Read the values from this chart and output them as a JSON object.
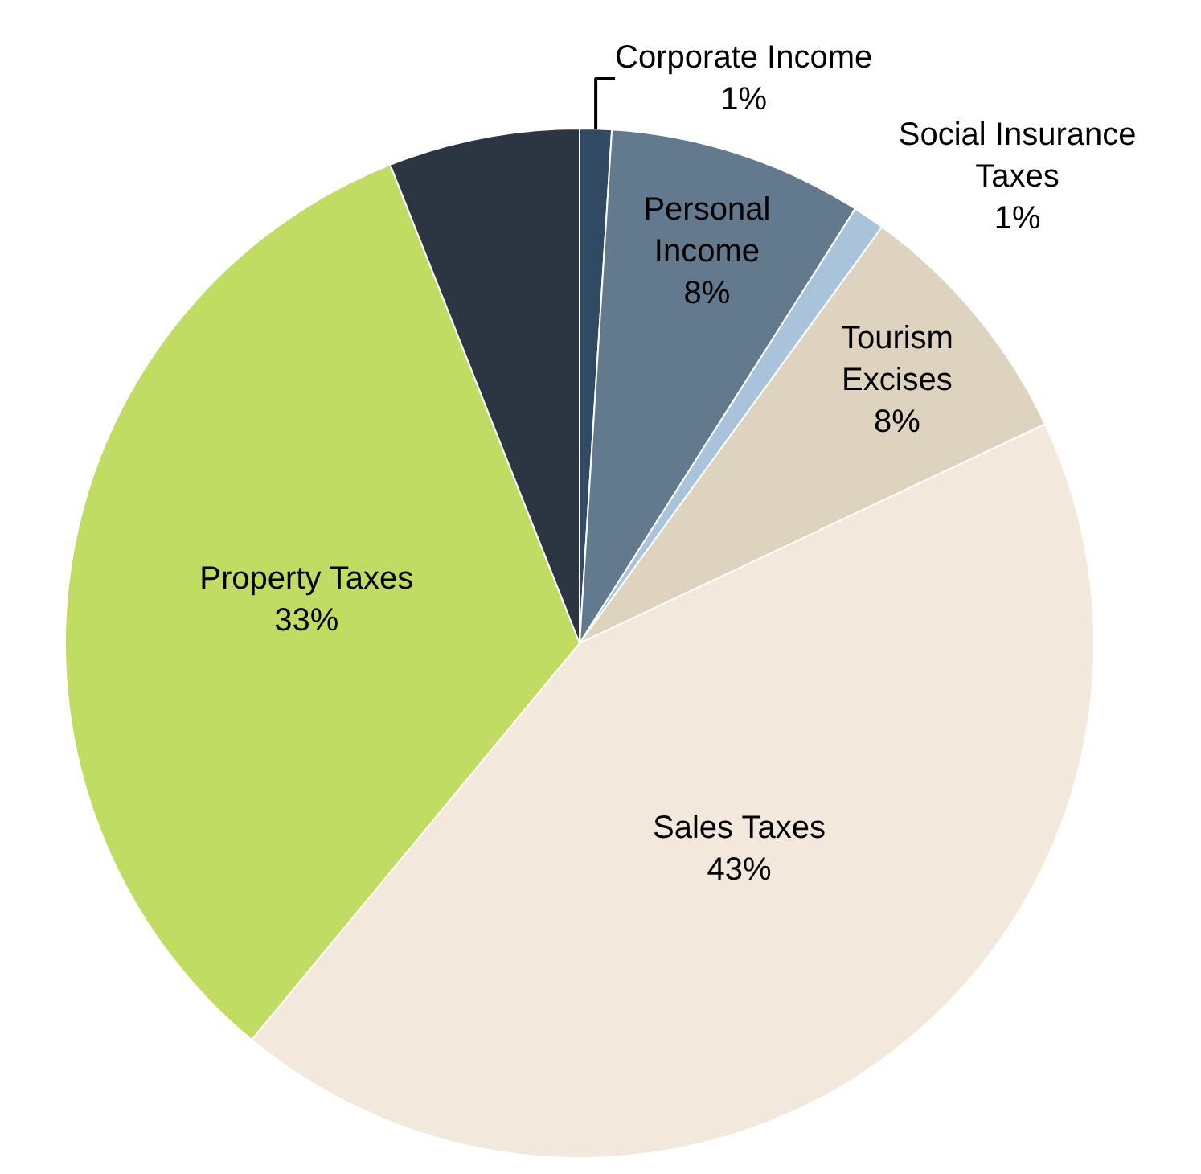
{
  "chart_data": {
    "type": "pie",
    "categories": [
      "Corporate Income",
      "Personal\nIncome",
      "Social Insurance\nTaxes",
      "Tourism\nExcises",
      "Sales Taxes",
      "Property Taxes",
      null
    ],
    "values": [
      1,
      8,
      1,
      8,
      43,
      33,
      6
    ],
    "value_labels": [
      "1%",
      "8%",
      "1%",
      "8%",
      "43%",
      "33%",
      null
    ],
    "colors": [
      "#2f4a62",
      "#62798e",
      "#a9c3da",
      "#ddd3bf",
      "#f2e8dc",
      "#c0dc62",
      "#2b3642"
    ],
    "legend": false
  }
}
